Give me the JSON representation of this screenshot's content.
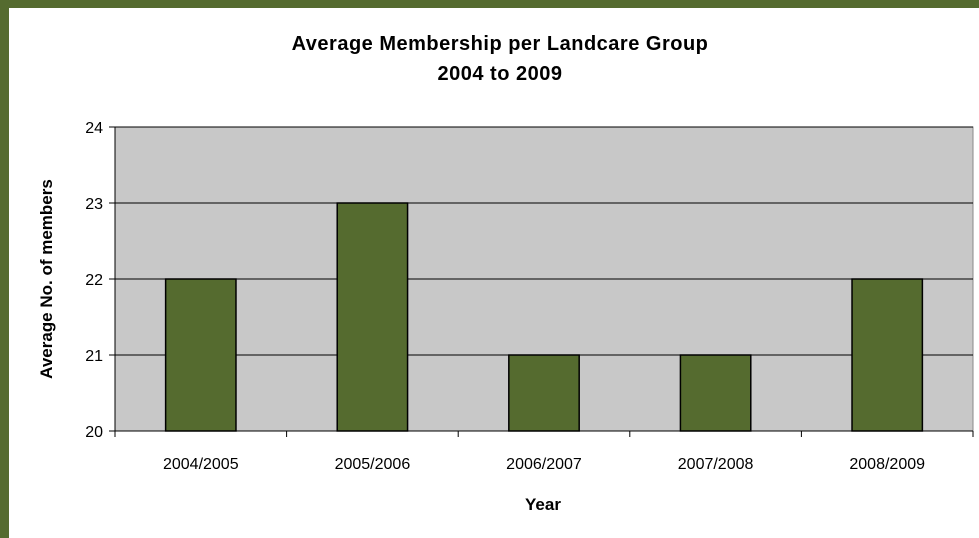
{
  "colors": {
    "frame": "#556b2f",
    "plot_area": "#c8c8c8",
    "bar_fill": "#556b2f",
    "bar_stroke": "#000000",
    "grid": "#000000"
  },
  "chart_data": {
    "type": "bar",
    "title": "Average Membership per Landcare Group",
    "subtitle": "2004 to 2009",
    "xlabel": "Year",
    "ylabel": "Average No. of members",
    "categories": [
      "2004/2005",
      "2005/2006",
      "2006/2007",
      "2007/2008",
      "2008/2009"
    ],
    "values": [
      22,
      23,
      21,
      21,
      22
    ],
    "ylim": [
      20,
      24
    ],
    "yticks": [
      20,
      21,
      22,
      23,
      24
    ],
    "grid": true,
    "legend": "none"
  }
}
